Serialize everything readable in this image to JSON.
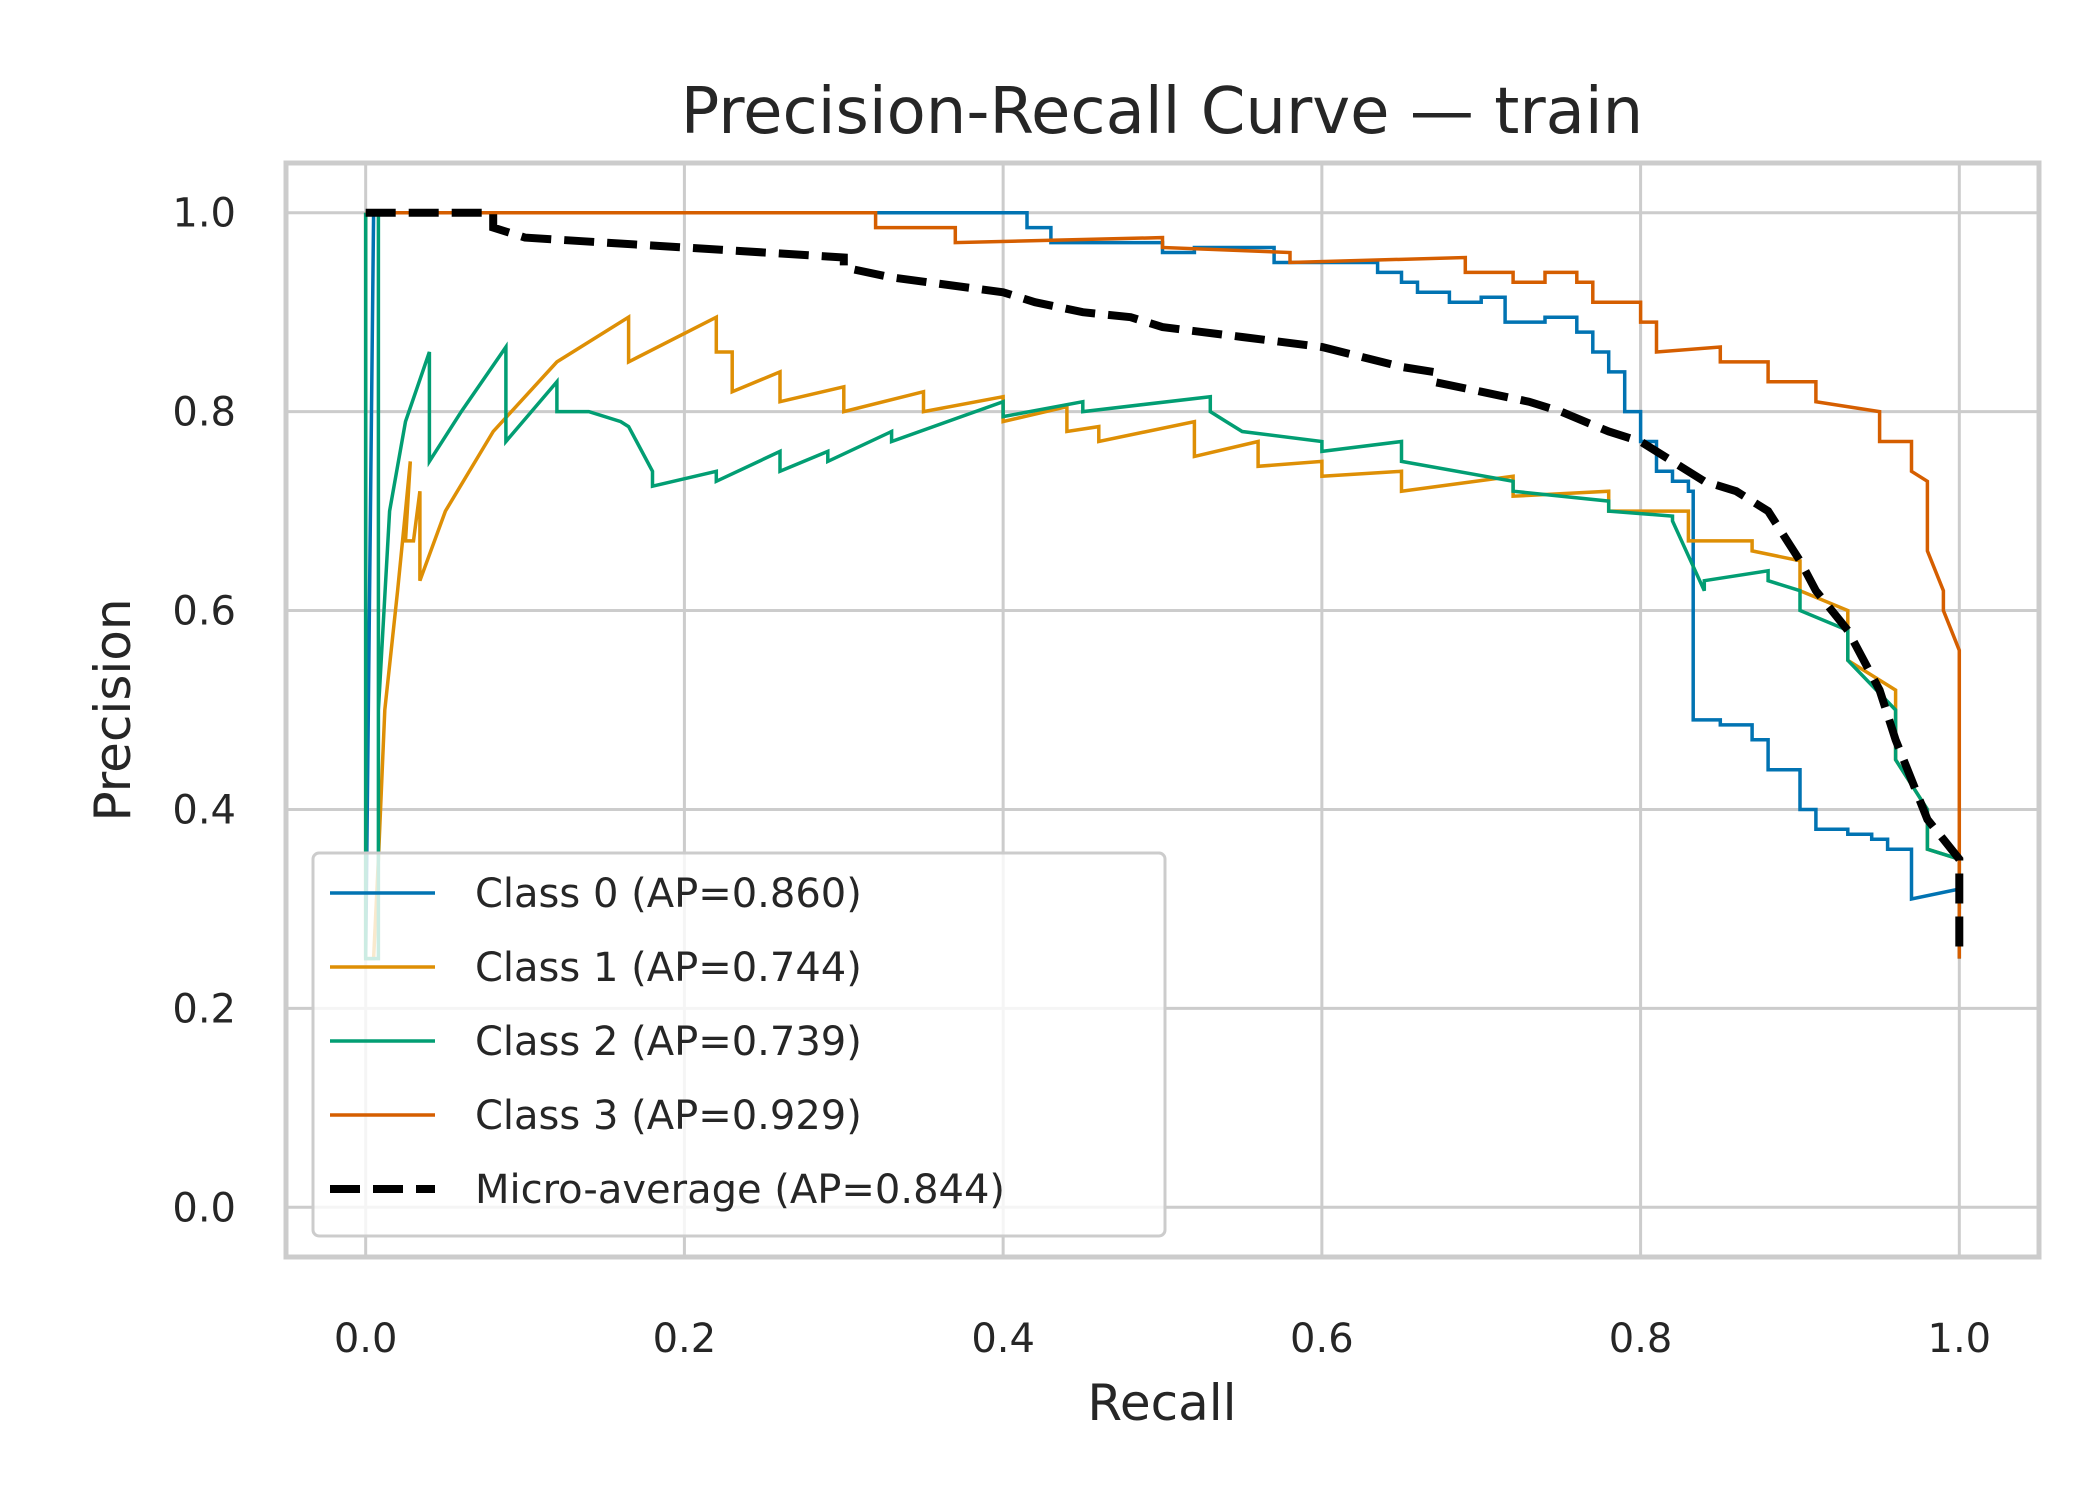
{
  "chart_data": {
    "type": "line",
    "title": "Precision-Recall Curve — train",
    "xlabel": "Recall",
    "ylabel": "Precision",
    "xlim": [
      -0.05,
      1.05
    ],
    "ylim": [
      -0.05,
      1.05
    ],
    "xticks": [
      0.0,
      0.2,
      0.4,
      0.6,
      0.8,
      1.0
    ],
    "xtick_labels": [
      "0.0",
      "0.2",
      "0.4",
      "0.6",
      "0.8",
      "1.0"
    ],
    "yticks": [
      0.0,
      0.2,
      0.4,
      0.6,
      0.8,
      1.0
    ],
    "ytick_labels": [
      "0.0",
      "0.2",
      "0.4",
      "0.6",
      "0.8",
      "1.0"
    ],
    "grid": true,
    "legend_position": "lower-left",
    "series": [
      {
        "name": "Class 0 (AP=0.860)",
        "color": "#0173b2",
        "dash": "solid",
        "points": [
          [
            0.0,
            1.0
          ],
          [
            0.0,
            0.25
          ],
          [
            0.005,
            1.0
          ],
          [
            0.2,
            1.0
          ],
          [
            0.3,
            1.0
          ],
          [
            0.415,
            1.0
          ],
          [
            0.415,
            0.985
          ],
          [
            0.43,
            0.985
          ],
          [
            0.43,
            0.97
          ],
          [
            0.5,
            0.97
          ],
          [
            0.5,
            0.96
          ],
          [
            0.52,
            0.96
          ],
          [
            0.52,
            0.965
          ],
          [
            0.57,
            0.965
          ],
          [
            0.57,
            0.95
          ],
          [
            0.635,
            0.95
          ],
          [
            0.635,
            0.94
          ],
          [
            0.65,
            0.94
          ],
          [
            0.65,
            0.93
          ],
          [
            0.66,
            0.93
          ],
          [
            0.66,
            0.92
          ],
          [
            0.68,
            0.92
          ],
          [
            0.68,
            0.91
          ],
          [
            0.7,
            0.91
          ],
          [
            0.7,
            0.915
          ],
          [
            0.715,
            0.915
          ],
          [
            0.715,
            0.89
          ],
          [
            0.74,
            0.89
          ],
          [
            0.74,
            0.895
          ],
          [
            0.76,
            0.895
          ],
          [
            0.76,
            0.88
          ],
          [
            0.77,
            0.88
          ],
          [
            0.77,
            0.86
          ],
          [
            0.78,
            0.86
          ],
          [
            0.78,
            0.84
          ],
          [
            0.79,
            0.84
          ],
          [
            0.79,
            0.8
          ],
          [
            0.8,
            0.8
          ],
          [
            0.8,
            0.77
          ],
          [
            0.81,
            0.77
          ],
          [
            0.81,
            0.74
          ],
          [
            0.82,
            0.74
          ],
          [
            0.82,
            0.73
          ],
          [
            0.83,
            0.73
          ],
          [
            0.83,
            0.72
          ],
          [
            0.833,
            0.72
          ],
          [
            0.833,
            0.49
          ],
          [
            0.85,
            0.49
          ],
          [
            0.85,
            0.485
          ],
          [
            0.87,
            0.485
          ],
          [
            0.87,
            0.47
          ],
          [
            0.88,
            0.47
          ],
          [
            0.88,
            0.44
          ],
          [
            0.9,
            0.44
          ],
          [
            0.9,
            0.4
          ],
          [
            0.91,
            0.4
          ],
          [
            0.91,
            0.38
          ],
          [
            0.93,
            0.38
          ],
          [
            0.93,
            0.375
          ],
          [
            0.945,
            0.375
          ],
          [
            0.945,
            0.37
          ],
          [
            0.955,
            0.37
          ],
          [
            0.955,
            0.36
          ],
          [
            0.97,
            0.36
          ],
          [
            0.97,
            0.31
          ],
          [
            1.0,
            0.32
          ],
          [
            1.0,
            0.25
          ]
        ]
      },
      {
        "name": "Class 1 (AP=0.744)",
        "color": "#de8f05",
        "dash": "solid",
        "points": [
          [
            0.0,
            1.0
          ],
          [
            0.0,
            0.25
          ],
          [
            0.005,
            0.25
          ],
          [
            0.008,
            0.35
          ],
          [
            0.012,
            0.5
          ],
          [
            0.02,
            0.62
          ],
          [
            0.025,
            0.7
          ],
          [
            0.028,
            0.75
          ],
          [
            0.025,
            0.67
          ],
          [
            0.03,
            0.67
          ],
          [
            0.034,
            0.72
          ],
          [
            0.034,
            0.63
          ],
          [
            0.05,
            0.7
          ],
          [
            0.08,
            0.78
          ],
          [
            0.12,
            0.85
          ],
          [
            0.165,
            0.895
          ],
          [
            0.165,
            0.85
          ],
          [
            0.22,
            0.895
          ],
          [
            0.22,
            0.86
          ],
          [
            0.23,
            0.86
          ],
          [
            0.23,
            0.82
          ],
          [
            0.26,
            0.84
          ],
          [
            0.26,
            0.81
          ],
          [
            0.3,
            0.825
          ],
          [
            0.3,
            0.8
          ],
          [
            0.35,
            0.82
          ],
          [
            0.35,
            0.8
          ],
          [
            0.4,
            0.815
          ],
          [
            0.4,
            0.79
          ],
          [
            0.44,
            0.805
          ],
          [
            0.44,
            0.78
          ],
          [
            0.46,
            0.785
          ],
          [
            0.46,
            0.77
          ],
          [
            0.52,
            0.79
          ],
          [
            0.52,
            0.755
          ],
          [
            0.56,
            0.77
          ],
          [
            0.56,
            0.745
          ],
          [
            0.6,
            0.75
          ],
          [
            0.6,
            0.735
          ],
          [
            0.65,
            0.74
          ],
          [
            0.65,
            0.72
          ],
          [
            0.72,
            0.735
          ],
          [
            0.72,
            0.715
          ],
          [
            0.78,
            0.72
          ],
          [
            0.78,
            0.7
          ],
          [
            0.83,
            0.7
          ],
          [
            0.83,
            0.67
          ],
          [
            0.87,
            0.67
          ],
          [
            0.87,
            0.66
          ],
          [
            0.9,
            0.65
          ],
          [
            0.9,
            0.62
          ],
          [
            0.93,
            0.6
          ],
          [
            0.93,
            0.55
          ],
          [
            0.96,
            0.52
          ],
          [
            0.96,
            0.45
          ],
          [
            0.98,
            0.4
          ],
          [
            0.98,
            0.36
          ],
          [
            1.0,
            0.35
          ],
          [
            1.0,
            0.3
          ]
        ]
      },
      {
        "name": "Class 2 (AP=0.739)",
        "color": "#029e73",
        "dash": "solid",
        "points": [
          [
            0.0,
            1.0
          ],
          [
            0.0,
            0.25
          ],
          [
            0.008,
            0.25
          ],
          [
            0.008,
            1.0
          ],
          [
            0.008,
            0.5
          ],
          [
            0.015,
            0.7
          ],
          [
            0.025,
            0.79
          ],
          [
            0.04,
            0.86
          ],
          [
            0.04,
            0.75
          ],
          [
            0.06,
            0.8
          ],
          [
            0.088,
            0.865
          ],
          [
            0.088,
            0.77
          ],
          [
            0.12,
            0.83
          ],
          [
            0.12,
            0.8
          ],
          [
            0.14,
            0.8
          ],
          [
            0.16,
            0.79
          ],
          [
            0.165,
            0.785
          ],
          [
            0.17,
            0.77
          ],
          [
            0.18,
            0.74
          ],
          [
            0.18,
            0.725
          ],
          [
            0.22,
            0.74
          ],
          [
            0.22,
            0.73
          ],
          [
            0.26,
            0.76
          ],
          [
            0.26,
            0.74
          ],
          [
            0.29,
            0.76
          ],
          [
            0.29,
            0.75
          ],
          [
            0.33,
            0.78
          ],
          [
            0.33,
            0.77
          ],
          [
            0.4,
            0.81
          ],
          [
            0.4,
            0.795
          ],
          [
            0.45,
            0.81
          ],
          [
            0.45,
            0.8
          ],
          [
            0.53,
            0.815
          ],
          [
            0.53,
            0.8
          ],
          [
            0.54,
            0.79
          ],
          [
            0.55,
            0.78
          ],
          [
            0.6,
            0.77
          ],
          [
            0.6,
            0.76
          ],
          [
            0.65,
            0.77
          ],
          [
            0.65,
            0.75
          ],
          [
            0.72,
            0.73
          ],
          [
            0.72,
            0.72
          ],
          [
            0.78,
            0.71
          ],
          [
            0.78,
            0.7
          ],
          [
            0.82,
            0.695
          ],
          [
            0.82,
            0.69
          ],
          [
            0.84,
            0.62
          ],
          [
            0.84,
            0.63
          ],
          [
            0.88,
            0.64
          ],
          [
            0.88,
            0.63
          ],
          [
            0.9,
            0.62
          ],
          [
            0.9,
            0.6
          ],
          [
            0.93,
            0.58
          ],
          [
            0.93,
            0.55
          ],
          [
            0.96,
            0.5
          ],
          [
            0.96,
            0.45
          ],
          [
            0.98,
            0.4
          ],
          [
            0.98,
            0.36
          ],
          [
            1.0,
            0.35
          ],
          [
            1.0,
            0.3
          ]
        ]
      },
      {
        "name": "Class 3 (AP=0.929)",
        "color": "#d55e00",
        "dash": "solid",
        "points": [
          [
            0.0,
            1.0
          ],
          [
            0.32,
            1.0
          ],
          [
            0.32,
            0.985
          ],
          [
            0.37,
            0.985
          ],
          [
            0.37,
            0.97
          ],
          [
            0.5,
            0.975
          ],
          [
            0.5,
            0.965
          ],
          [
            0.58,
            0.96
          ],
          [
            0.58,
            0.95
          ],
          [
            0.69,
            0.955
          ],
          [
            0.69,
            0.94
          ],
          [
            0.72,
            0.94
          ],
          [
            0.72,
            0.93
          ],
          [
            0.74,
            0.93
          ],
          [
            0.74,
            0.94
          ],
          [
            0.76,
            0.94
          ],
          [
            0.76,
            0.93
          ],
          [
            0.77,
            0.93
          ],
          [
            0.77,
            0.91
          ],
          [
            0.8,
            0.91
          ],
          [
            0.8,
            0.89
          ],
          [
            0.81,
            0.89
          ],
          [
            0.81,
            0.86
          ],
          [
            0.85,
            0.865
          ],
          [
            0.85,
            0.85
          ],
          [
            0.88,
            0.85
          ],
          [
            0.88,
            0.83
          ],
          [
            0.91,
            0.83
          ],
          [
            0.91,
            0.81
          ],
          [
            0.95,
            0.8
          ],
          [
            0.95,
            0.77
          ],
          [
            0.97,
            0.77
          ],
          [
            0.97,
            0.74
          ],
          [
            0.98,
            0.73
          ],
          [
            0.98,
            0.66
          ],
          [
            0.99,
            0.62
          ],
          [
            0.99,
            0.6
          ],
          [
            1.0,
            0.56
          ],
          [
            1.0,
            0.25
          ]
        ]
      },
      {
        "name": "Micro-average (AP=0.844)",
        "color": "#000000",
        "dash": "dashed",
        "points": [
          [
            0.0,
            1.0
          ],
          [
            0.08,
            1.0
          ],
          [
            0.08,
            0.985
          ],
          [
            0.09,
            0.98
          ],
          [
            0.1,
            0.975
          ],
          [
            0.15,
            0.97
          ],
          [
            0.2,
            0.965
          ],
          [
            0.3,
            0.955
          ],
          [
            0.3,
            0.945
          ],
          [
            0.33,
            0.935
          ],
          [
            0.4,
            0.92
          ],
          [
            0.42,
            0.91
          ],
          [
            0.45,
            0.9
          ],
          [
            0.48,
            0.895
          ],
          [
            0.5,
            0.885
          ],
          [
            0.55,
            0.875
          ],
          [
            0.6,
            0.865
          ],
          [
            0.65,
            0.845
          ],
          [
            0.67,
            0.84
          ],
          [
            0.67,
            0.83
          ],
          [
            0.7,
            0.82
          ],
          [
            0.73,
            0.81
          ],
          [
            0.75,
            0.8
          ],
          [
            0.78,
            0.78
          ],
          [
            0.8,
            0.77
          ],
          [
            0.82,
            0.75
          ],
          [
            0.84,
            0.73
          ],
          [
            0.86,
            0.72
          ],
          [
            0.88,
            0.7
          ],
          [
            0.9,
            0.65
          ],
          [
            0.91,
            0.62
          ],
          [
            0.93,
            0.58
          ],
          [
            0.95,
            0.52
          ],
          [
            0.96,
            0.47
          ],
          [
            0.97,
            0.43
          ],
          [
            0.98,
            0.39
          ],
          [
            0.99,
            0.37
          ],
          [
            1.0,
            0.35
          ],
          [
            1.0,
            0.25
          ]
        ]
      }
    ]
  }
}
